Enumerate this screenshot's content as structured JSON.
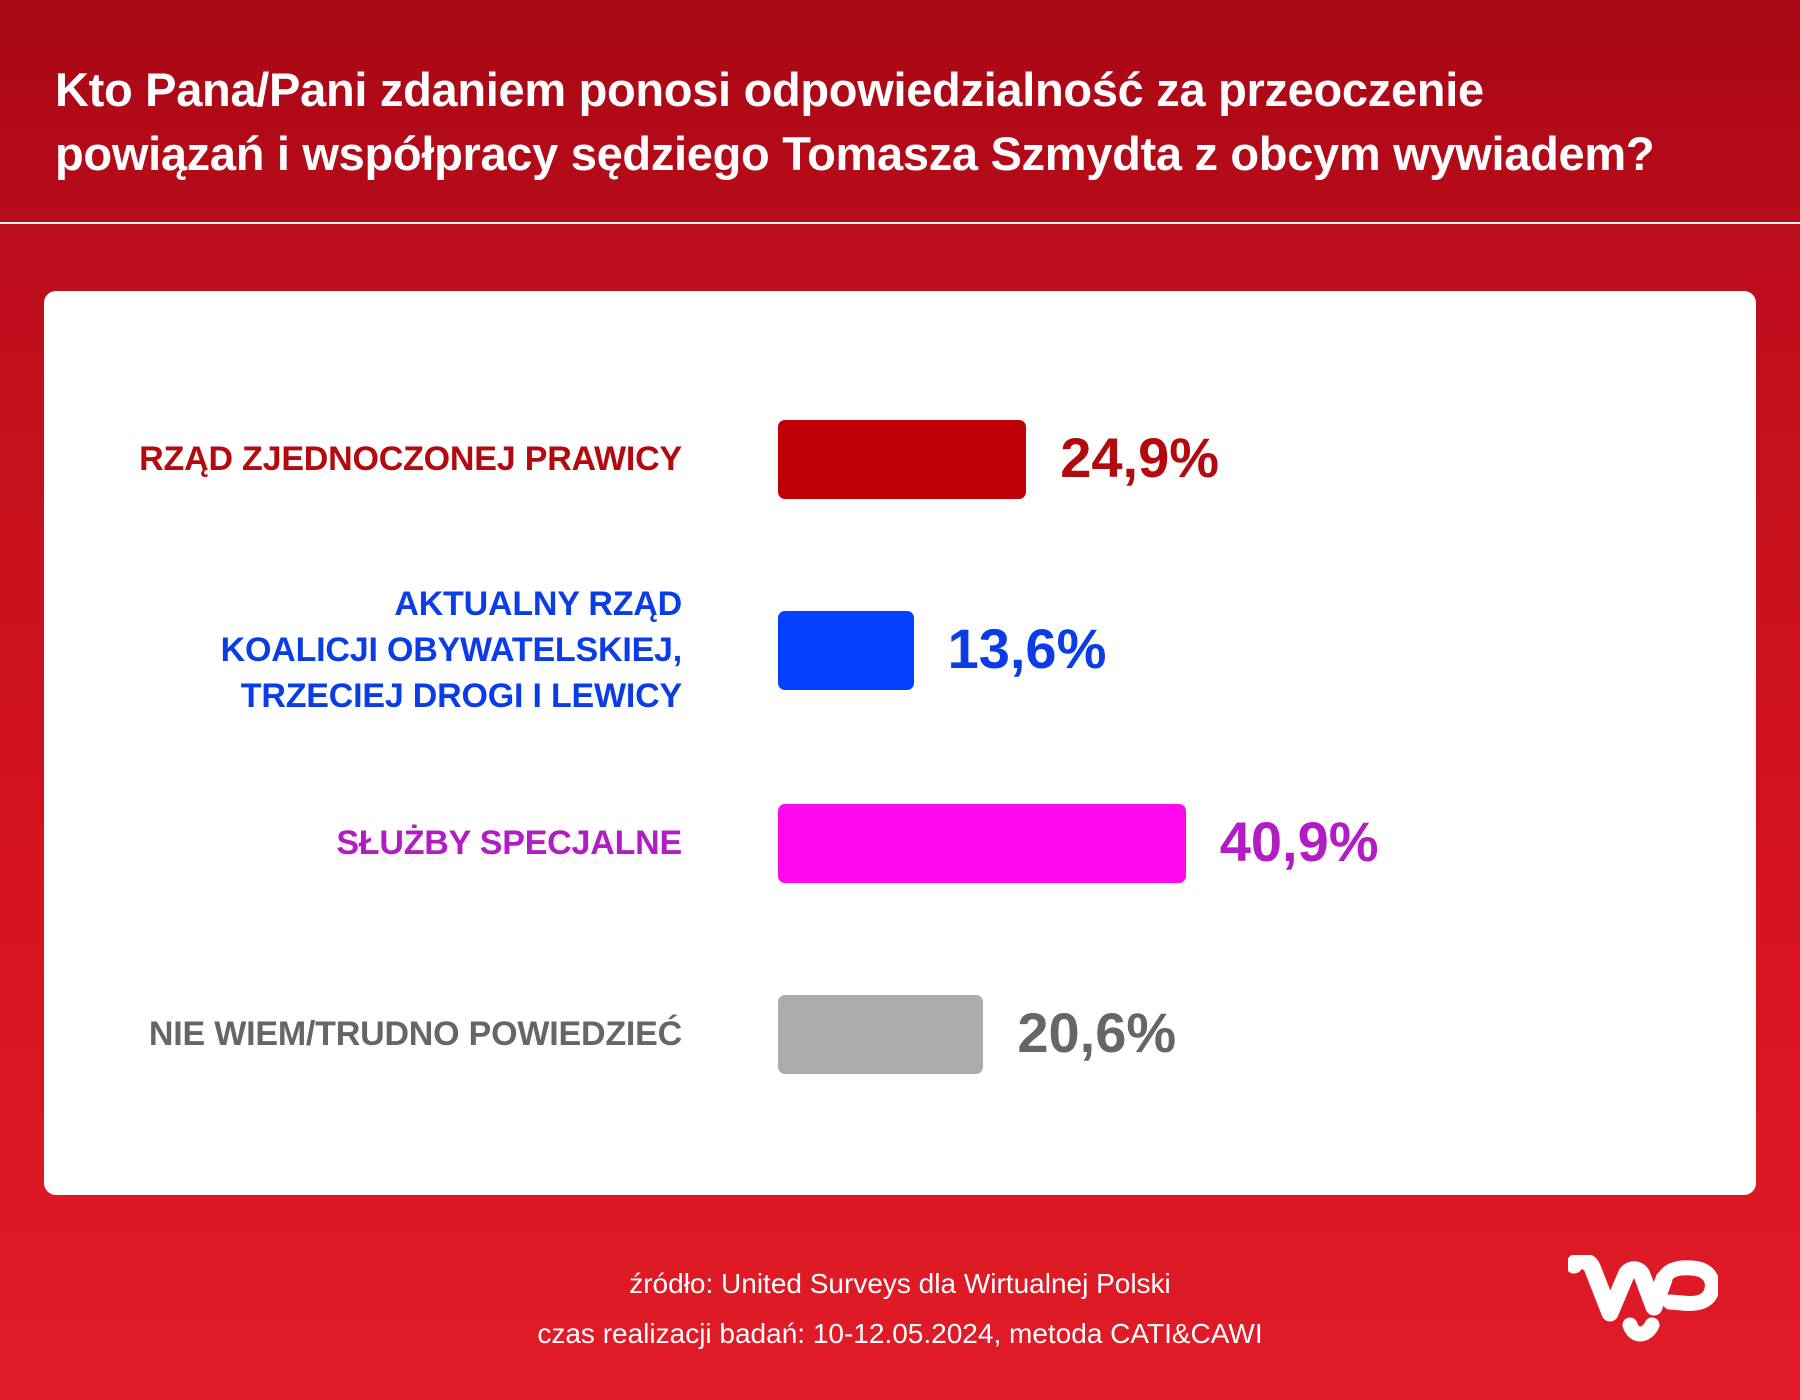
{
  "title": {
    "line1": "Kto Pana/Pani zdaniem ponosi odpowiedzialność za przeoczenie",
    "line2": "powiązań i współpracy sędziego Tomasza Szmydta z obcym wywiadem?"
  },
  "chart_data": {
    "type": "bar",
    "orientation": "horizontal",
    "unit": "%",
    "categories": [
      [
        "RZĄD ZJEDNOCZONEJ PRAWICY"
      ],
      [
        "AKTUALNY RZĄD",
        "KOALICJI OBYWATELSKIEJ,",
        "TRZECIEJ DROGI I LEWICY"
      ],
      [
        "SŁUŻBY SPECJALNE"
      ],
      [
        "NIE WIEM/TRUDNO POWIEDZIEĆ"
      ]
    ],
    "values": [
      24.9,
      13.6,
      40.9,
      20.6
    ],
    "value_labels": [
      "24,9%",
      "13,6%",
      "40,9%",
      "20,6%"
    ],
    "bar_colors": [
      "#c00007",
      "#0640ff",
      "#ff08ee",
      "#acacac"
    ],
    "text_colors": [
      "#b20a0e",
      "#0a3de6",
      "#b21cc4",
      "#666666"
    ],
    "grid": false,
    "legend": "none"
  },
  "footer": {
    "source": "źródło: United Surveys dla Wirtualnej Polski",
    "period": "czas realizacji badań: 10-12.05.2024, metoda CATI&CAWI"
  },
  "logo": {
    "text": "WP",
    "icon": "wp-logo-icon",
    "color": "#ffffff"
  }
}
